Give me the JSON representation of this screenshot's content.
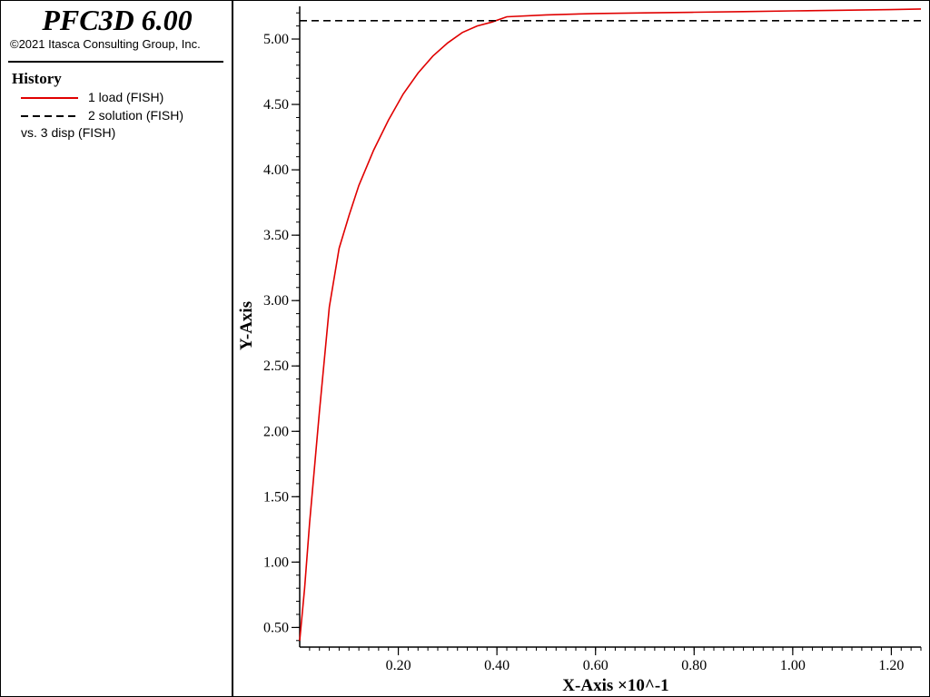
{
  "header": {
    "app_title": "PFC3D 6.00",
    "copyright": "©2021 Itasca Consulting Group, Inc."
  },
  "legend": {
    "title": "History",
    "items": [
      {
        "label": "1 load (FISH)",
        "color": "#e00000",
        "style": "solid"
      },
      {
        "label": "2 solution (FISH)",
        "color": "#000000",
        "style": "dashed"
      }
    ],
    "vs_label": "vs. 3 disp (FISH)"
  },
  "chart_data": {
    "type": "line",
    "xlabel": "X-Axis ×10^-1",
    "ylabel": "Y-Axis",
    "xlim": [
      0.0,
      1.26
    ],
    "ylim": [
      0.35,
      5.25
    ],
    "x_ticks": [
      "0.20",
      "0.40",
      "0.60",
      "0.80",
      "1.00",
      "1.20"
    ],
    "y_ticks": [
      "0.50",
      "1.00",
      "1.50",
      "2.00",
      "2.50",
      "3.00",
      "3.50",
      "4.00",
      "4.50",
      "5.00"
    ],
    "grid": false,
    "series": [
      {
        "name": "1 load (FISH)",
        "color": "#e00000",
        "style": "solid",
        "x": [
          0.0,
          0.01,
          0.02,
          0.04,
          0.06,
          0.08,
          0.1,
          0.12,
          0.15,
          0.18,
          0.21,
          0.24,
          0.27,
          0.3,
          0.33,
          0.36,
          0.39,
          0.42,
          0.5,
          0.6,
          0.7,
          0.8,
          0.9,
          1.0,
          1.1,
          1.2,
          1.26
        ],
        "y": [
          0.4,
          0.8,
          1.3,
          2.15,
          2.95,
          3.4,
          3.65,
          3.88,
          4.15,
          4.38,
          4.58,
          4.74,
          4.87,
          4.97,
          5.05,
          5.1,
          5.13,
          5.17,
          5.185,
          5.195,
          5.2,
          5.205,
          5.21,
          5.215,
          5.22,
          5.225,
          5.23
        ]
      },
      {
        "name": "2 solution (FISH)",
        "color": "#000000",
        "style": "dashed",
        "x": [
          0.0,
          1.26
        ],
        "y": [
          5.14,
          5.14
        ]
      }
    ]
  }
}
